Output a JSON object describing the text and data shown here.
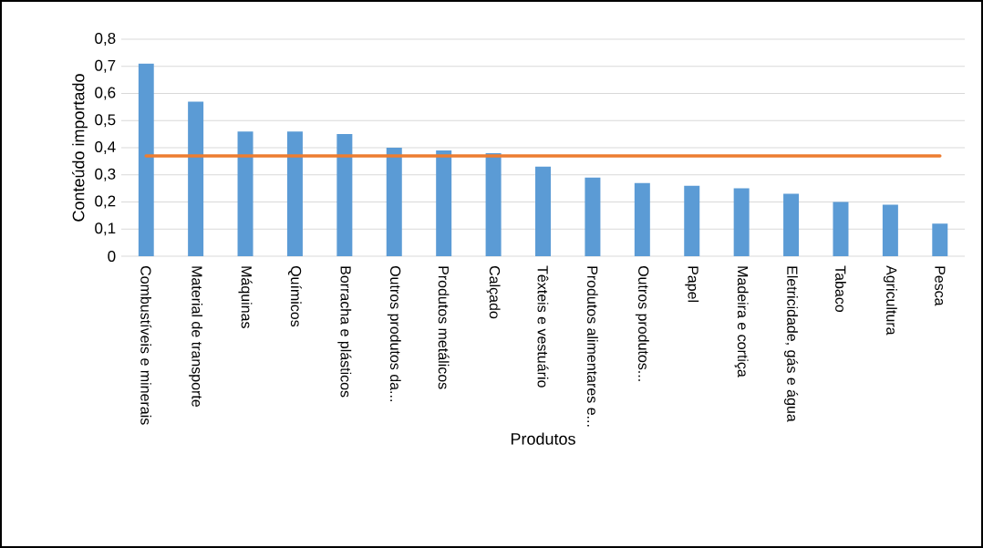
{
  "chart_data": {
    "type": "bar",
    "xlabel": "Produtos",
    "ylabel": "Conteúdo importado",
    "categories": [
      "Combustíveis e minerais",
      "Material de transporte",
      "Máquinas",
      "Químicos",
      "Borracha e plásticos",
      "Outros produtos da...",
      "Produtos metálicos",
      "Calçado",
      "Têxteis e vestuário",
      "Produtos alimentares e...",
      "Outros produtos...",
      "Papel",
      "Madeira e cortiça",
      "Eletricidade, gás e água",
      "Tabaco",
      "Agricultura",
      "Pesca"
    ],
    "series": [
      {
        "color": "#5b9bd5",
        "values": [
          0.71,
          0.57,
          0.46,
          0.46,
          0.45,
          0.4,
          0.39,
          0.38,
          0.33,
          0.29,
          0.27,
          0.26,
          0.25,
          0.23,
          0.2,
          0.19,
          0.12
        ]
      },
      {
        "type": "line",
        "color": "#ed7d31",
        "values": [
          0.37,
          0.37,
          0.37,
          0.37,
          0.37,
          0.37,
          0.37,
          0.37,
          0.37,
          0.37,
          0.37,
          0.37,
          0.37,
          0.37,
          0.37,
          0.37,
          0.37
        ]
      }
    ],
    "ylim": [
      0,
      0.8
    ],
    "yticks": [
      {
        "value": 0,
        "label": "0"
      },
      {
        "value": 0.1,
        "label": "0,1"
      },
      {
        "value": 0.2,
        "label": "0,2"
      },
      {
        "value": 0.3,
        "label": "0,3"
      },
      {
        "value": 0.4,
        "label": "0,4"
      },
      {
        "value": 0.5,
        "label": "0,5"
      },
      {
        "value": 0.6,
        "label": "0,6"
      },
      {
        "value": 0.7,
        "label": "0,7"
      },
      {
        "value": 0.8,
        "label": "0,8"
      }
    ],
    "grid": "y"
  }
}
